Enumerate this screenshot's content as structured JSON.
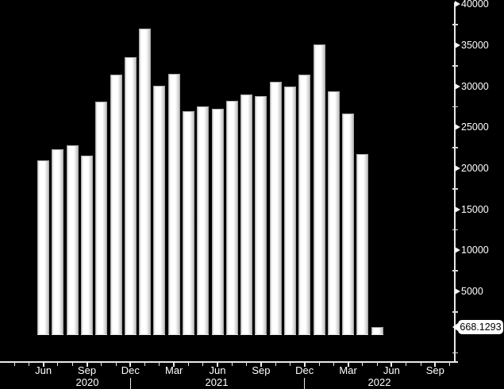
{
  "chart_data": {
    "type": "bar",
    "title": "",
    "x": [
      "Jun 2020",
      "Jul 2020",
      "Aug 2020",
      "Sep 2020",
      "Oct 2020",
      "Nov 2020",
      "Dec 2020",
      "Jan 2021",
      "Feb 2021",
      "Mar 2021",
      "Apr 2021",
      "May 2021",
      "Jun 2021",
      "Jul 2021",
      "Aug 2021",
      "Sep 2021",
      "Oct 2021",
      "Nov 2021",
      "Dec 2021",
      "Jan 2022",
      "Feb 2022",
      "Mar 2022",
      "Apr 2022",
      "May 2022"
    ],
    "values": [
      21000,
      22300,
      22800,
      21500,
      28100,
      31400,
      33500,
      37000,
      30100,
      31500,
      27000,
      27500,
      27300,
      28200,
      29000,
      28800,
      30500,
      30000,
      31400,
      35100,
      29400,
      26700,
      21700,
      668.1293
    ],
    "xlabel": "",
    "ylabel": "",
    "ylim": [
      0,
      40000
    ],
    "y_ticks": [
      5000,
      10000,
      15000,
      20000,
      25000,
      30000,
      35000,
      40000
    ],
    "y_minor_step": 2500,
    "x_tick_labels": [
      "Jun",
      "Sep",
      "Dec",
      "Mar",
      "Jun",
      "Sep",
      "Dec",
      "Mar",
      "Jun",
      "Sep"
    ],
    "year_labels": [
      "2020",
      "2021",
      "2022"
    ],
    "last_value_label": "668.1293",
    "grid": false,
    "legend": false,
    "axis_side": "right",
    "colors": {
      "background": "#000000",
      "bar_fill": "#ffffff",
      "bar_shade": "#bfbfbf",
      "axis": "#e9e9e9",
      "text": "#ffffff",
      "last_value_bg": "#ffffff",
      "last_value_text": "#000000"
    }
  }
}
